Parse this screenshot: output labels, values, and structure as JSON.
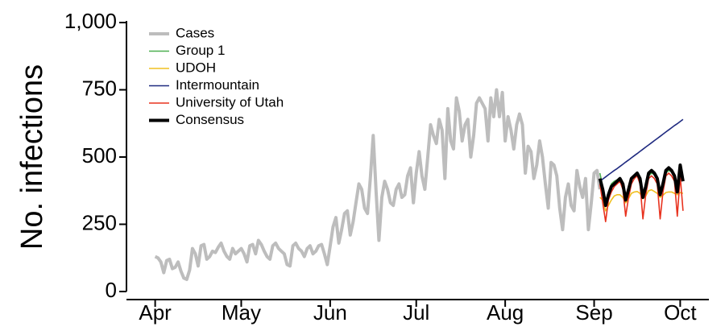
{
  "chart_data": {
    "type": "line",
    "y_label": "No. infections",
    "xlim": [
      -10,
      193
    ],
    "ylim": [
      0,
      1000
    ],
    "xticks": [
      {
        "value": 0,
        "label": "Apr"
      },
      {
        "value": 30,
        "label": "May"
      },
      {
        "value": 61,
        "label": "Jun"
      },
      {
        "value": 91,
        "label": "Jul"
      },
      {
        "value": 122,
        "label": "Aug"
      },
      {
        "value": 153,
        "label": "Sep"
      },
      {
        "value": 183,
        "label": "Oct"
      }
    ],
    "yticks": [
      0,
      250,
      500,
      750,
      {
        "value": 1000,
        "label": "1,000"
      }
    ],
    "legend": "upper left",
    "series": [
      {
        "name": "Cases",
        "color": "#bdbdbd",
        "x": [
          0,
          1,
          2,
          3,
          4,
          5,
          6,
          7,
          8,
          9,
          10,
          11,
          12,
          13,
          14,
          15,
          16,
          17,
          18,
          19,
          20,
          21,
          22,
          23,
          24,
          25,
          26,
          27,
          28,
          29,
          30,
          31,
          32,
          33,
          34,
          35,
          36,
          37,
          38,
          39,
          40,
          41,
          42,
          43,
          44,
          45,
          46,
          47,
          48,
          49,
          50,
          51,
          52,
          53,
          54,
          55,
          56,
          57,
          58,
          59,
          60,
          61,
          62,
          63,
          64,
          65,
          66,
          67,
          68,
          69,
          70,
          71,
          72,
          73,
          74,
          75,
          76,
          77,
          78,
          79,
          80,
          81,
          82,
          83,
          84,
          85,
          86,
          87,
          88,
          89,
          90,
          91,
          92,
          93,
          94,
          95,
          96,
          97,
          98,
          99,
          100,
          101,
          102,
          103,
          104,
          105,
          106,
          107,
          108,
          109,
          110,
          111,
          112,
          113,
          114,
          115,
          116,
          117,
          118,
          119,
          120,
          121,
          122,
          123,
          124,
          125,
          126,
          127,
          128,
          129,
          130,
          131,
          132,
          133,
          134,
          135,
          136,
          137,
          138,
          139,
          140,
          141,
          142,
          143,
          144,
          145,
          146,
          147,
          148,
          149,
          150,
          151,
          152,
          153,
          154,
          155
        ],
        "values": [
          130,
          125,
          110,
          70,
          115,
          120,
          85,
          90,
          110,
          75,
          50,
          45,
          80,
          160,
          140,
          95,
          170,
          175,
          120,
          130,
          150,
          145,
          165,
          180,
          150,
          130,
          120,
          160,
          140,
          150,
          160,
          140,
          110,
          170,
          175,
          140,
          190,
          175,
          150,
          130,
          120,
          170,
          180,
          160,
          150,
          140,
          100,
          95,
          170,
          180,
          160,
          150,
          130,
          160,
          170,
          140,
          150,
          170,
          175,
          140,
          100,
          170,
          240,
          275,
          180,
          230,
          290,
          300,
          210,
          260,
          330,
          400,
          380,
          310,
          290,
          420,
          580,
          370,
          190,
          350,
          410,
          380,
          330,
          320,
          380,
          400,
          350,
          360,
          430,
          460,
          330,
          440,
          520,
          430,
          380,
          500,
          620,
          580,
          550,
          640,
          600,
          420,
          680,
          560,
          530,
          720,
          670,
          560,
          620,
          640,
          500,
          580,
          700,
          720,
          700,
          680,
          560,
          720,
          650,
          750,
          650,
          740,
          560,
          650,
          600,
          530,
          620,
          660,
          620,
          440,
          540,
          520,
          420,
          470,
          560,
          500,
          400,
          310,
          480,
          470,
          430,
          310,
          230,
          350,
          400,
          320,
          300,
          450,
          390,
          350,
          420,
          230,
          330,
          440,
          450,
          380
        ]
      },
      {
        "name": "Group 1",
        "color": "#4caf50",
        "x": [
          155,
          156,
          157,
          158,
          159,
          160,
          161,
          162,
          163,
          164,
          165,
          166,
          167,
          168,
          169,
          170,
          171,
          172,
          173,
          174,
          175,
          176,
          177,
          178,
          179,
          180,
          181,
          182,
          183,
          184
        ],
        "values": [
          440,
          390,
          330,
          370,
          400,
          410,
          415,
          420,
          405,
          350,
          390,
          420,
          430,
          435,
          420,
          360,
          395,
          430,
          440,
          435,
          420,
          365,
          400,
          440,
          450,
          445,
          430,
          375,
          445,
          420
        ]
      },
      {
        "name": "UDOH",
        "color": "#f0c020",
        "x": [
          155,
          156,
          157,
          158,
          159,
          160,
          161,
          162,
          163,
          164,
          165,
          166,
          167,
          168,
          169,
          170,
          171,
          172,
          173,
          174,
          175,
          176,
          177,
          178,
          179,
          180,
          181,
          182,
          183,
          184
        ],
        "values": [
          350,
          340,
          300,
          320,
          340,
          355,
          360,
          360,
          350,
          330,
          345,
          365,
          370,
          372,
          365,
          345,
          355,
          375,
          378,
          372,
          365,
          350,
          358,
          368,
          370,
          370,
          365,
          360,
          368,
          365
        ]
      },
      {
        "name": "Intermountain",
        "color": "#1f2a80",
        "x": [
          155,
          156,
          157,
          158,
          159,
          160,
          161,
          162,
          163,
          164,
          165,
          166,
          167,
          168,
          169,
          170,
          171,
          172,
          173,
          174,
          175,
          176,
          177,
          178,
          179,
          180,
          181,
          182,
          183,
          184
        ],
        "values": [
          410,
          418,
          426,
          434,
          442,
          450,
          457,
          465,
          473,
          481,
          489,
          497,
          505,
          513,
          521,
          529,
          537,
          545,
          553,
          561,
          569,
          577,
          585,
          593,
          601,
          609,
          617,
          624,
          632,
          640
        ]
      },
      {
        "name": "University of Utah",
        "color": "#e8321e",
        "x": [
          155,
          156,
          157,
          158,
          159,
          160,
          161,
          162,
          163,
          164,
          165,
          166,
          167,
          168,
          169,
          170,
          171,
          172,
          173,
          174,
          175,
          176,
          177,
          178,
          179,
          180,
          181,
          182,
          183,
          184
        ],
        "values": [
          400,
          330,
          260,
          340,
          370,
          390,
          400,
          410,
          380,
          280,
          350,
          400,
          420,
          430,
          400,
          270,
          360,
          420,
          430,
          420,
          400,
          270,
          370,
          430,
          440,
          430,
          410,
          280,
          430,
          300
        ]
      },
      {
        "name": "Consensus",
        "color": "#000000",
        "x": [
          155,
          156,
          157,
          158,
          159,
          160,
          161,
          162,
          163,
          164,
          165,
          166,
          167,
          168,
          169,
          170,
          171,
          172,
          173,
          174,
          175,
          176,
          177,
          178,
          179,
          180,
          181,
          182,
          183,
          184
        ],
        "values": [
          420,
          380,
          320,
          360,
          390,
          400,
          410,
          420,
          400,
          340,
          380,
          420,
          430,
          440,
          420,
          350,
          390,
          440,
          450,
          440,
          420,
          360,
          400,
          450,
          460,
          450,
          430,
          370,
          470,
          410
        ]
      }
    ]
  }
}
